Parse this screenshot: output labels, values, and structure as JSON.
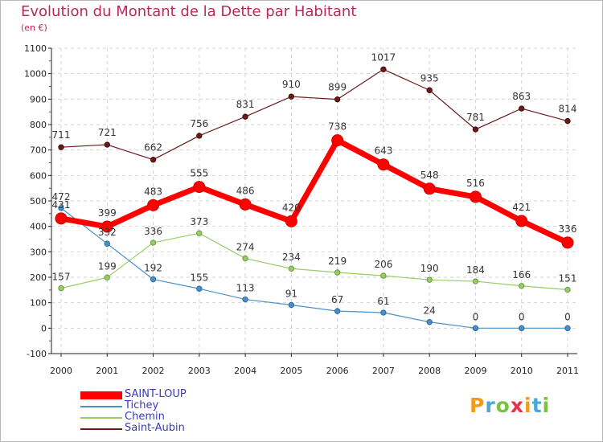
{
  "chart_data": {
    "type": "line",
    "title": "Evolution du Montant de la Dette par Habitant",
    "subtitle": "(en €)",
    "categories": [
      "2000",
      "2001",
      "2002",
      "2003",
      "2004",
      "2005",
      "2006",
      "2007",
      "2008",
      "2009",
      "2010",
      "2011"
    ],
    "y_ticks": [
      "1100",
      "1000",
      "900",
      "800",
      "700",
      "600",
      "500",
      "400",
      "300",
      "200",
      "100",
      "0",
      "-100"
    ],
    "ylim": [
      -100,
      1100
    ],
    "grid": "dashed horizontal",
    "legend_position": "bottom-left",
    "series": [
      {
        "name": "SAINT-LOUP",
        "color": "#ff0000",
        "values": [
          431,
          399,
          483,
          555,
          486,
          420,
          738,
          643,
          548,
          516,
          421,
          336
        ]
      },
      {
        "name": "Tichey",
        "color": "#4a90c8",
        "values": [
          472,
          332,
          192,
          155,
          113,
          91,
          67,
          61,
          24,
          0,
          0,
          0
        ]
      },
      {
        "name": "Chemin",
        "color": "#99cc66",
        "values": [
          157,
          199,
          336,
          373,
          274,
          234,
          219,
          206,
          190,
          184,
          166,
          151
        ]
      },
      {
        "name": "Saint-Aubin",
        "color": "#6b1a1a",
        "values": [
          711,
          721,
          662,
          756,
          831,
          910,
          899,
          1017,
          935,
          781,
          863,
          814
        ]
      }
    ]
  },
  "logo": {
    "text": "Proxiti"
  }
}
